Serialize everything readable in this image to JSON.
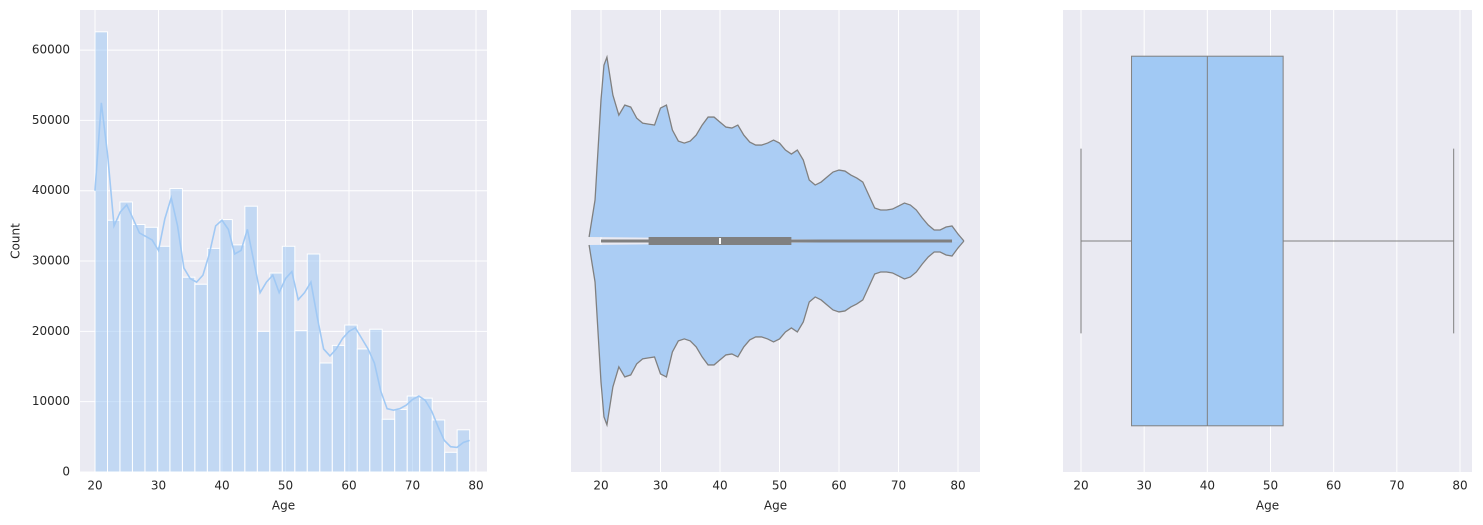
{
  "chart_data": [
    {
      "type": "histogram",
      "x_label": "Age",
      "y_label": "Count",
      "bins": [
        20,
        21.97,
        23.93,
        25.9,
        27.87,
        29.83,
        31.8,
        33.77,
        35.73,
        37.7,
        39.67,
        41.63,
        43.6,
        45.57,
        47.53,
        49.5,
        51.47,
        53.43,
        55.4,
        57.37,
        59.33,
        61.3,
        63.27,
        65.23,
        67.2,
        69.17,
        71.13,
        73.1,
        75.07,
        77.03,
        79
      ],
      "values": [
        62600,
        35800,
        38400,
        35200,
        34800,
        32100,
        40300,
        27700,
        26700,
        31800,
        35900,
        32300,
        37800,
        20000,
        28300,
        32100,
        20100,
        31000,
        15500,
        18000,
        20900,
        17500,
        20300,
        7500,
        8900,
        10800,
        10500,
        7400,
        2800,
        6000
      ],
      "color": "#a1c9f4",
      "kde": {
        "x": [
          20,
          21,
          22,
          23,
          24,
          25,
          26,
          27,
          28,
          29,
          30,
          31,
          32,
          33,
          34,
          35,
          36,
          37,
          38,
          39,
          40,
          41,
          42,
          43,
          44,
          45,
          46,
          47,
          48,
          49,
          50,
          51,
          52,
          53,
          54,
          55,
          56,
          57,
          58,
          59,
          60,
          61,
          62,
          63,
          64,
          65,
          66,
          67,
          68,
          69,
          70,
          71,
          72,
          73,
          74,
          75,
          76,
          77,
          78,
          79
        ],
        "y": [
          40000,
          52500,
          45000,
          35000,
          37000,
          38000,
          36000,
          34000,
          33500,
          33000,
          31500,
          36000,
          39000,
          35000,
          29000,
          27500,
          27000,
          28000,
          31000,
          35000,
          35800,
          34500,
          31000,
          31500,
          34500,
          30000,
          25500,
          27000,
          28000,
          25500,
          27500,
          28500,
          24500,
          25500,
          27000,
          22000,
          17500,
          16500,
          17500,
          19000,
          20000,
          20500,
          19000,
          17500,
          15500,
          11500,
          9000,
          8800,
          9000,
          9500,
          10300,
          10800,
          10200,
          8700,
          6500,
          4500,
          3600,
          3500,
          4200,
          4500
        ]
      },
      "xlim": [
        17.64,
        81.73
      ],
      "xticks": [
        20,
        30,
        40,
        50,
        60,
        70,
        80
      ],
      "ylim": [
        0,
        65700
      ],
      "yticks": [
        0,
        10000,
        20000,
        30000,
        40000,
        50000,
        60000
      ],
      "grid": true
    },
    {
      "type": "violin",
      "x_label": "Age",
      "x": [
        18,
        19,
        20,
        20.5,
        21,
        22,
        23,
        24,
        25,
        26,
        27,
        28,
        29,
        30,
        31,
        32,
        33,
        34,
        35,
        36,
        37,
        38,
        39,
        40,
        41,
        42,
        43,
        44,
        45,
        46,
        47,
        48,
        49,
        50,
        51,
        52,
        53,
        54,
        55,
        56,
        57,
        58,
        59,
        60,
        61,
        62,
        63,
        64,
        65,
        66,
        67,
        68,
        69,
        70,
        71,
        72,
        73,
        74,
        75,
        76,
        77,
        78,
        79,
        80,
        81
      ],
      "density": [
        4,
        41,
        141,
        176,
        184,
        146,
        126,
        136,
        134,
        123,
        118,
        117,
        116,
        133,
        136,
        111,
        100,
        98,
        100,
        106,
        116,
        124,
        124,
        119,
        114,
        113,
        116,
        106,
        99,
        96,
        96,
        98,
        101,
        98,
        91,
        87,
        91,
        81,
        61,
        56,
        59,
        64,
        69,
        71,
        70,
        66,
        63,
        59,
        46,
        33,
        31,
        31,
        32,
        35,
        38,
        36,
        31,
        23,
        16,
        11,
        11,
        14,
        15,
        7,
        0
      ],
      "whislo": 20,
      "q1": 28,
      "median": 40,
      "q3": 52,
      "whishi": 79,
      "color": "#abcdf4",
      "edgecolor": "#808080",
      "xlim": [
        14.96,
        83.7
      ],
      "xticks": [
        20,
        30,
        40,
        50,
        60,
        70,
        80
      ],
      "grid": true
    },
    {
      "type": "box",
      "x_label": "Age",
      "whislo": 20,
      "q1": 28,
      "median": 40,
      "q3": 52,
      "whishi": 79,
      "color": "#a1c9f4",
      "edgecolor": "#808080",
      "xlim": [
        17.15,
        81.9
      ],
      "xticks": [
        20,
        30,
        40,
        50,
        60,
        70,
        80
      ],
      "grid": true
    }
  ]
}
